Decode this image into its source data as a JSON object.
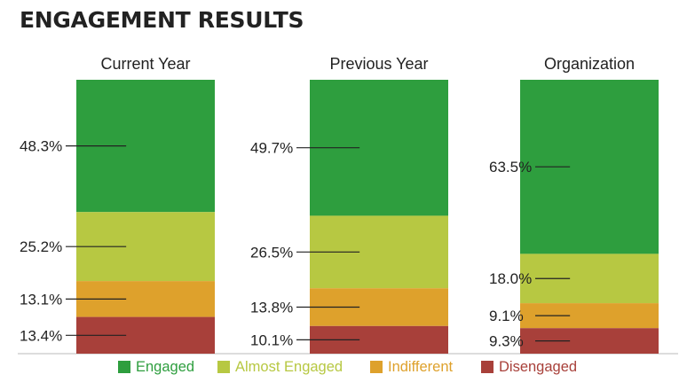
{
  "title": "ENGAGEMENT RESULTS",
  "chart_data": {
    "type": "bar",
    "stacked": true,
    "percent_stacked": true,
    "categories": [
      "Current Year",
      "Previous Year",
      "Organization"
    ],
    "series": [
      {
        "name": "Engaged",
        "values": [
          48.3,
          49.7,
          63.5
        ],
        "labels": [
          "48.3%",
          "49.7%",
          "63.5%"
        ],
        "color": "#2e9e3e"
      },
      {
        "name": "Almost Engaged",
        "values": [
          25.2,
          26.5,
          18.0
        ],
        "labels": [
          "25.2%",
          "26.5%",
          "18.0%"
        ],
        "color": "#b7c842"
      },
      {
        "name": "Indifferent",
        "values": [
          13.1,
          13.8,
          9.1
        ],
        "labels": [
          "13.1%",
          "13.8%",
          "9.1%"
        ],
        "color": "#dea12c"
      },
      {
        "name": "Disengaged",
        "values": [
          13.4,
          10.1,
          9.3
        ],
        "labels": [
          "13.4%",
          "10.1%",
          "9.3%"
        ],
        "color": "#a8403a"
      }
    ],
    "legend_position": "bottom",
    "grid": false
  }
}
